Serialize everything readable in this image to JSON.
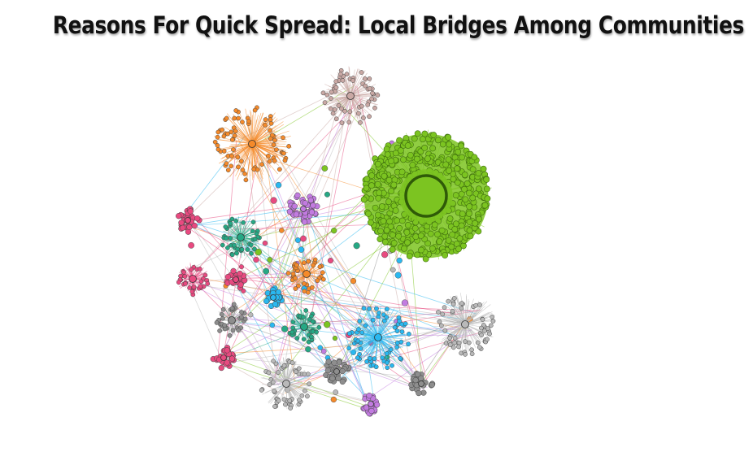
{
  "title": "Reasons For Quick Spread: Local Bridges Among Communities",
  "palette": {
    "green": "#7cc421",
    "green_dark": "#3f6f0e",
    "orange": "#f58a2a",
    "blue": "#2ab8f0",
    "purple": "#c27be0",
    "pink": "#e84a80",
    "teal": "#26a884",
    "mauve": "#c9a8a4",
    "gray": "#b9b9b9",
    "gray_dark": "#8e8e8e"
  }
}
